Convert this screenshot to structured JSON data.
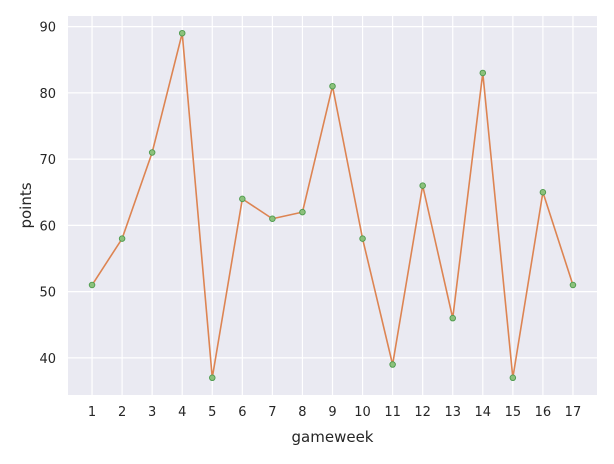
{
  "chart_data": {
    "type": "line",
    "title": "",
    "xlabel": "gameweek",
    "ylabel": "points",
    "x": [
      1,
      2,
      3,
      4,
      5,
      6,
      7,
      8,
      9,
      10,
      11,
      12,
      13,
      14,
      15,
      16,
      17
    ],
    "x_tick_labels": [
      "1",
      "2",
      "3",
      "4",
      "5",
      "6",
      "7",
      "8",
      "9",
      "10",
      "11",
      "12",
      "13",
      "14",
      "15",
      "16",
      "17"
    ],
    "y_ticks": [
      40,
      50,
      60,
      70,
      80,
      90
    ],
    "y_tick_labels": [
      "40",
      "50",
      "60",
      "70",
      "80",
      "90"
    ],
    "xlim": [
      0.2,
      17.8
    ],
    "ylim": [
      34.4,
      91.6
    ],
    "grid": true,
    "legend": "none",
    "series": [
      {
        "name": "",
        "values": [
          51,
          58,
          71,
          89,
          37,
          64,
          61,
          62,
          81,
          58,
          39,
          66,
          46,
          83,
          37,
          65,
          51
        ]
      }
    ],
    "colors": {
      "background": "#eaeaf2",
      "grid": "#ffffff",
      "line": "#dd8452",
      "marker_fill": "#8cc17c",
      "marker_edge": "#4c9a4c",
      "text": "#262626"
    }
  }
}
